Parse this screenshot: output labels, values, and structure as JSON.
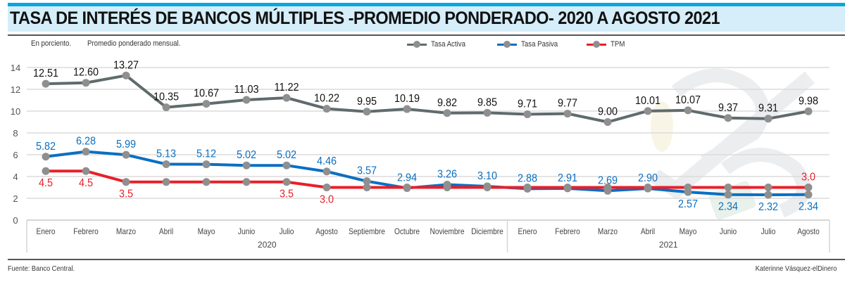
{
  "header": {
    "title": "TASA DE INTERÉS DE BANCOS MÚLTIPLES -PROMEDIO PONDERADO- 2020 A AGOSTO 2021",
    "subtitle_units": "En porciento.",
    "subtitle_note": "Promedio ponderado mensual."
  },
  "footer": {
    "source": "Fuente: Banco Central.",
    "credit": "Katerinne Vásquez-elDinero"
  },
  "colors": {
    "tasa_activa": "#5f6b6d",
    "tasa_pasiva": "#0a6fc2",
    "tpm": "#e8202a",
    "marker": "#8f8f8f",
    "grid": "#dcdcdc"
  },
  "chart_data": {
    "type": "line",
    "title": "TASA DE INTERÉS DE BANCOS MÚLTIPLES -PROMEDIO PONDERADO- 2020 A AGOSTO 2021",
    "xlabel": "",
    "ylabel": "En porciento.",
    "ylim": [
      0,
      14
    ],
    "yticks": [
      0,
      2,
      4,
      6,
      8,
      10,
      12,
      14
    ],
    "grid": true,
    "legend_position": "top-center",
    "categories": [
      "Enero",
      "Febrero",
      "Marzo",
      "Abril",
      "Mayo",
      "Junio",
      "Julio",
      "Agosto",
      "Septiembre",
      "Octubre",
      "Noviembre",
      "Diciembre",
      "Enero",
      "Febrero",
      "Marzo",
      "Abril",
      "Mayo",
      "Junio",
      "Julio",
      "Agosto"
    ],
    "year_groups": [
      {
        "label": "2020",
        "start": 0,
        "end": 11
      },
      {
        "label": "2021",
        "start": 12,
        "end": 19
      }
    ],
    "series": [
      {
        "name": "Tasa Activa",
        "key": "tasa_activa",
        "values": [
          12.51,
          12.6,
          13.27,
          10.35,
          10.67,
          11.03,
          11.22,
          10.22,
          9.95,
          10.19,
          9.82,
          9.85,
          9.71,
          9.77,
          9.0,
          10.01,
          10.07,
          9.37,
          9.31,
          9.98
        ],
        "labels": [
          "12.51",
          "12.60",
          "13.27",
          "10.35",
          "10.67",
          "11.03",
          "11.22",
          "10.22",
          "9.95",
          "10.19",
          "9.82",
          "9.85",
          "9.71",
          "9.77",
          "9.00",
          "10.01",
          "10.07",
          "9.37",
          "9.31",
          "9.98"
        ],
        "label_position": [
          "above",
          "above",
          "above",
          "above",
          "above",
          "above",
          "above",
          "above",
          "above",
          "above",
          "above",
          "above",
          "above",
          "above",
          "above",
          "above",
          "above",
          "above",
          "above",
          "above"
        ]
      },
      {
        "name": "Tasa Pasiva",
        "key": "tasa_pasiva",
        "values": [
          5.82,
          6.28,
          5.99,
          5.13,
          5.12,
          5.02,
          5.02,
          4.46,
          3.57,
          2.94,
          3.26,
          3.1,
          2.88,
          2.91,
          2.69,
          2.9,
          2.57,
          2.34,
          2.32,
          2.34
        ],
        "labels": [
          "5.82",
          "6.28",
          "5.99",
          "5.13",
          "5.12",
          "5.02",
          "5.02",
          "4.46",
          "3.57",
          "2.94",
          "3.26",
          "3.10",
          "2.88",
          "2.91",
          "2.69",
          "2.90",
          "2.57",
          "2.34",
          "2.32",
          "2.34"
        ],
        "label_position": [
          "above",
          "above",
          "above",
          "above",
          "above",
          "above",
          "above",
          "above",
          "above",
          "above",
          "above",
          "above",
          "above",
          "above",
          "above",
          "above",
          "below",
          "below",
          "below",
          "below"
        ]
      },
      {
        "name": "TPM",
        "key": "tpm",
        "values": [
          4.5,
          4.5,
          3.5,
          3.5,
          3.5,
          3.5,
          3.5,
          3.0,
          3.0,
          3.0,
          3.0,
          3.0,
          3.0,
          3.0,
          3.0,
          3.0,
          3.0,
          3.0,
          3.0,
          3.0
        ],
        "labels": [
          "4.5",
          "4.5",
          "3.5",
          "",
          "",
          "",
          "3.5",
          "3.0",
          "",
          "",
          "",
          "",
          "",
          "",
          "",
          "",
          "",
          "",
          "",
          "3.0"
        ],
        "label_position": [
          "below",
          "below",
          "below",
          "",
          "",
          "",
          "below",
          "below",
          "",
          "",
          "",
          "",
          "",
          "",
          "",
          "",
          "",
          "",
          "",
          "above"
        ]
      }
    ]
  }
}
